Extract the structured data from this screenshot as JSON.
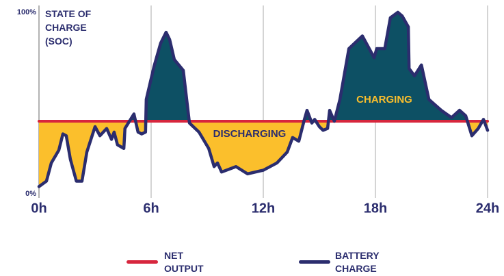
{
  "chart_data": {
    "type": "line",
    "y_label": "STATE OF CHARGE (SOC)",
    "annotations": [
      "DISCHARGING",
      "CHARGING"
    ],
    "below_color": "#fbbf2c",
    "above_color": "#0d5064",
    "xlim": [
      0,
      24
    ],
    "xticks": [
      {
        "value": 0,
        "label": "0h"
      },
      {
        "value": 6,
        "label": "6h"
      },
      {
        "value": 12,
        "label": "12h"
      },
      {
        "value": 18,
        "label": "18h"
      },
      {
        "value": 24,
        "label": "24h"
      }
    ],
    "ylim": [
      0,
      100
    ],
    "yticks": [
      {
        "value": 0,
        "label": "0%"
      },
      {
        "value": 100,
        "label": "100%"
      }
    ],
    "grid": true,
    "series": [
      {
        "name": "NET OUTPUT",
        "color": "#d7263d",
        "x": [
          0,
          24
        ],
        "values": [
          40,
          40
        ]
      },
      {
        "name": "BATTERY CHARGE",
        "color": "#2b2d6e",
        "x": [
          0,
          0.4,
          0.66,
          1.06,
          1.28,
          1.46,
          1.68,
          2.0,
          2.3,
          2.56,
          3.0,
          3.26,
          3.62,
          3.88,
          4.02,
          4.2,
          4.54,
          4.6,
          5.08,
          5.3,
          5.49,
          5.7,
          5.74,
          6.15,
          6.51,
          6.8,
          6.99,
          7.24,
          7.72,
          8.05,
          8.56,
          9.08,
          9.37,
          9.55,
          9.77,
          10.54,
          11.16,
          12.0,
          12.73,
          13.28,
          13.57,
          13.9,
          14.2,
          14.34,
          14.6,
          14.75,
          15.0,
          15.2,
          15.44,
          15.55,
          15.8,
          16.1,
          16.58,
          17.3,
          17.93,
          18.07,
          18.5,
          18.8,
          19.2,
          19.43,
          19.76,
          19.8,
          20.09,
          20.46,
          20.86,
          21.52,
          22.07,
          22.5,
          22.83,
          23.16,
          23.5,
          23.78,
          24
        ],
        "values": [
          4,
          7,
          17,
          24,
          33,
          32,
          19,
          7,
          7,
          23,
          37,
          32,
          36,
          30,
          34,
          27,
          25,
          36,
          44,
          34,
          33,
          34,
          52,
          70,
          83,
          89,
          85,
          74,
          68,
          39,
          34,
          25,
          15,
          17,
          12,
          15,
          11,
          13,
          17,
          23,
          31,
          29,
          41,
          46,
          39,
          41,
          37,
          35,
          36,
          46,
          40,
          52,
          80,
          87,
          75,
          80,
          80,
          97,
          100,
          98,
          92,
          69,
          65,
          71,
          52,
          46,
          42,
          46,
          43,
          32,
          36,
          41,
          35
        ]
      }
    ]
  }
}
